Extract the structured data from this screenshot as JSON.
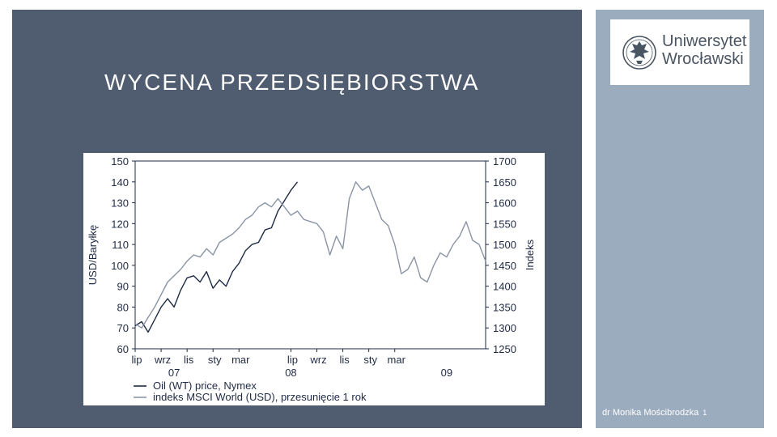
{
  "slide": {
    "title": "WYCENA PRZEDSIĘBIORSTWA",
    "logo": {
      "line1": "Uniwersytet",
      "line2": "Wrocławski"
    },
    "footer": {
      "author": "dr  Monika Mościbrodzka",
      "page": "1"
    }
  },
  "colors": {
    "panel_dark": "#505d71",
    "panel_light": "#9cacbf",
    "oil_series": "#1f2a44",
    "msci_series": "#8a94a6",
    "axis_text": "#1f2a44"
  },
  "chart_data": {
    "type": "line",
    "ylabel_left": "USD/Baryłkę",
    "ylabel_right": "Indeks",
    "ylim_left": [
      60,
      150
    ],
    "ylim_right": [
      1250,
      1700
    ],
    "yticks_left": [
      150,
      140,
      130,
      120,
      110,
      100,
      90,
      80,
      70,
      60
    ],
    "yticks_right": [
      1700,
      1650,
      1600,
      1550,
      1500,
      1450,
      1400,
      1350,
      1300,
      1250
    ],
    "xticks": [
      "lip",
      "wrz",
      "lis",
      "sty",
      "mar",
      "lip",
      "wrz",
      "lis",
      "sty",
      "mar"
    ],
    "year_labels": [
      "07",
      "08",
      "09"
    ],
    "x_month_index_range": [
      0,
      27
    ],
    "legend": [
      "Oil (WT) price, Nymex",
      "indeks MSCI World (USD), przesunięcie 1 rok"
    ],
    "series": [
      {
        "name": "Oil (WT) price, Nymex",
        "axis": "left",
        "x": [
          0,
          0.5,
          1,
          1.5,
          2,
          2.5,
          3,
          3.5,
          4,
          4.5,
          5,
          5.5,
          6,
          6.5,
          7,
          7.5,
          8,
          8.5,
          9,
          9.5,
          10,
          10.5,
          11,
          11.5,
          12,
          12.5
        ],
        "values": [
          71,
          73,
          68,
          74,
          80,
          84,
          80,
          88,
          94,
          95,
          92,
          97,
          89,
          93,
          90,
          97,
          101,
          107,
          110,
          111,
          117,
          118,
          126,
          131,
          136,
          140
        ]
      },
      {
        "name": "indeks MSCI World (USD), przesunięcie 1 rok",
        "axis": "right",
        "x": [
          0,
          0.5,
          1,
          1.5,
          2,
          2.5,
          3,
          3.5,
          4,
          4.5,
          5,
          5.5,
          6,
          6.5,
          7,
          7.5,
          8,
          8.5,
          9,
          9.5,
          10,
          10.5,
          11,
          11.5,
          12,
          12.5,
          13,
          13.5,
          14,
          14.5,
          15,
          15.5,
          16,
          16.5,
          17,
          17.5,
          18,
          18.5,
          19,
          19.5,
          20,
          20.5,
          21,
          21.5,
          22,
          22.5,
          23,
          23.5,
          24,
          24.5,
          25,
          25.5,
          26,
          26.5,
          27
        ],
        "values": [
          1310,
          1300,
          1325,
          1350,
          1380,
          1410,
          1425,
          1440,
          1460,
          1475,
          1470,
          1490,
          1475,
          1505,
          1515,
          1525,
          1540,
          1560,
          1570,
          1590,
          1600,
          1590,
          1610,
          1590,
          1570,
          1580,
          1560,
          1555,
          1550,
          1530,
          1475,
          1520,
          1490,
          1610,
          1650,
          1630,
          1640,
          1600,
          1560,
          1545,
          1500,
          1430,
          1440,
          1470,
          1420,
          1410,
          1450,
          1480,
          1470,
          1500,
          1520,
          1555,
          1510,
          1500,
          1460
        ]
      }
    ],
    "grid": false,
    "legend_position": "bottom-left"
  }
}
